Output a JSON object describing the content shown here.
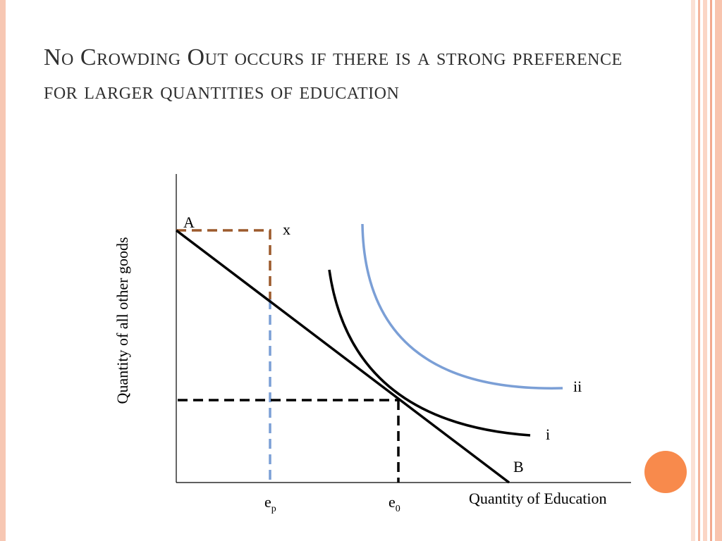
{
  "slide": {
    "title": "No Crowding Out occurs if there is a strong preference for larger quantities of education"
  },
  "diagram": {
    "y_axis_label": "Quantity of all other goods",
    "x_axis_label": "Quantity of Education",
    "point_labels": {
      "A": "A",
      "x": "x",
      "B": "B"
    },
    "curve_labels": {
      "i": "i",
      "ii": "ii"
    },
    "tick_labels": {
      "ep": {
        "base": "e",
        "sub": "p"
      },
      "e0": {
        "base": "e",
        "sub": "0"
      }
    },
    "colors": {
      "budget_line": "#000000",
      "curve_i": "#000000",
      "curve_ii": "#7b9fd6",
      "dashed_x": "#9c5a2c",
      "dashed_ep": "#7b9fd6",
      "dashed_e0": "#000000",
      "accent_dot": "#f88a4c"
    }
  }
}
